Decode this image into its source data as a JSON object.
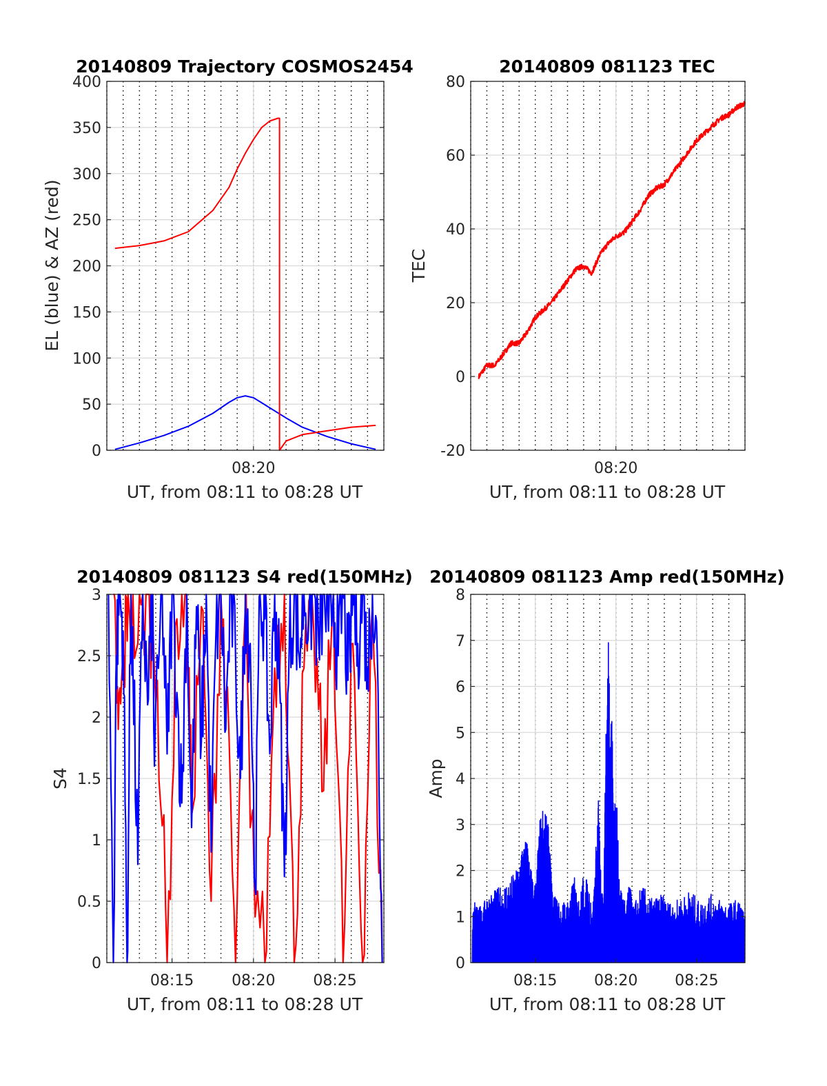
{
  "colors": {
    "el_series": "#0000ff",
    "az_series": "#ff0000",
    "tec_series": "#ff0000",
    "s4_red_series": "#ff0000",
    "s4_blue_series": "#0000ff",
    "amp_series": "#0000ff",
    "grid": "#d9d9d9",
    "axes": "#262626"
  },
  "chart_data": [
    {
      "id": "trajectory",
      "type": "line",
      "title": "20140809 Trajectory COSMOS2454",
      "xlabel": "UT, from 08:11 to 08:28 UT",
      "ylabel": "EL (blue) & AZ (red)",
      "xlim": [
        8.1833,
        8.4667
      ],
      "ylim": [
        0,
        400
      ],
      "xticks": [
        {
          "x": 8.3333,
          "label": "08:20"
        }
      ],
      "yticks": [
        0,
        50,
        100,
        150,
        200,
        250,
        300,
        350,
        400
      ],
      "grid": true,
      "minor_vertical_dotted_grid": true,
      "series": [
        {
          "color": "blue",
          "x": [
            8.1917,
            8.2167,
            8.2417,
            8.2667,
            8.2917,
            8.3083,
            8.3167,
            8.325,
            8.3333,
            8.35,
            8.3667,
            8.3833,
            8.4083,
            8.4333,
            8.4583
          ],
          "y": [
            1,
            8,
            16,
            26,
            40,
            52,
            57,
            59,
            57,
            46,
            35,
            25,
            15,
            7,
            1
          ]
        },
        {
          "color": "red",
          "x": [
            8.1917,
            8.2167,
            8.2417,
            8.2667,
            8.2917,
            8.3083,
            8.3167,
            8.325,
            8.3333,
            8.3417,
            8.35,
            8.3583,
            8.36,
            8.36,
            8.3667,
            8.3833,
            8.4083,
            8.4333,
            8.4583
          ],
          "y": [
            219,
            222,
            227,
            237,
            260,
            285,
            305,
            322,
            337,
            350,
            357,
            360,
            360,
            0,
            10,
            17,
            21,
            25,
            27
          ]
        }
      ]
    },
    {
      "id": "tec",
      "type": "line",
      "title": "20140809 081123 TEC",
      "xlabel": "UT, from 08:11 to 08:28 UT",
      "ylabel": "TEC",
      "xlim": [
        8.1833,
        8.4667
      ],
      "ylim": [
        -20,
        80
      ],
      "xticks": [
        {
          "x": 8.3333,
          "label": "08:20"
        }
      ],
      "yticks": [
        -20,
        0,
        20,
        40,
        60,
        80
      ],
      "grid": true,
      "minor_vertical_dotted_grid": true,
      "series": [
        {
          "color": "red",
          "x": [
            8.1917,
            8.2,
            8.2083,
            8.2167,
            8.225,
            8.2333,
            8.2417,
            8.25,
            8.2583,
            8.2667,
            8.275,
            8.2833,
            8.2917,
            8.3,
            8.3083,
            8.3167,
            8.325,
            8.3333,
            8.3417,
            8.35,
            8.3583,
            8.3667,
            8.375,
            8.3833,
            8.3917,
            8.4,
            8.4083,
            8.4167,
            8.425,
            8.4333,
            8.4417,
            8.45,
            8.4583,
            8.4667
          ],
          "y": [
            0,
            3,
            3,
            6,
            9,
            9,
            12,
            16,
            18,
            20,
            23,
            26,
            29,
            30,
            28,
            33,
            36,
            38,
            39,
            42,
            45,
            49,
            51,
            52,
            55,
            58,
            61,
            64,
            66,
            68,
            70,
            71,
            73,
            74
          ]
        }
      ]
    },
    {
      "id": "s4",
      "type": "line",
      "title": "20140809 081123 S4 red(150MHz)",
      "xlabel": "UT, from 08:11 to 08:28 UT",
      "ylabel": "S4",
      "xlim": [
        8.1833,
        8.4667
      ],
      "ylim": [
        0,
        3
      ],
      "xticks": [
        {
          "x": 8.25,
          "label": "08:15"
        },
        {
          "x": 8.3333,
          "label": "08:20"
        },
        {
          "x": 8.4167,
          "label": "08:25"
        }
      ],
      "yticks": [
        0,
        0.5,
        1,
        1.5,
        2,
        2.5,
        3
      ],
      "ytick_labels": [
        "0",
        "0.5",
        "1",
        "1.5",
        "2",
        "2.5",
        "3"
      ],
      "grid": true,
      "minor_vertical_dotted_grid": true,
      "series": [
        {
          "color": "red",
          "x": [
            8.19,
            8.195,
            8.2,
            8.205,
            8.215,
            8.225,
            8.235,
            8.245,
            8.255,
            8.265,
            8.27,
            8.28,
            8.29,
            8.3,
            8.305,
            8.315,
            8.325,
            8.33,
            8.345,
            8.355,
            8.365,
            8.375,
            8.385,
            8.395,
            8.405,
            8.415,
            8.425,
            8.435,
            8.445,
            8.455,
            8.465
          ],
          "y": [
            3,
            1.9,
            2.3,
            3,
            2.6,
            3,
            2.3,
            0,
            2.8,
            3,
            1.2,
            2.9,
            0.5,
            3,
            2.2,
            0,
            2.9,
            1.1,
            0,
            2.4,
            3,
            0,
            2.4,
            2.7,
            1.4,
            3,
            0,
            2.6,
            0,
            2.9,
            0
          ]
        },
        {
          "color": "blue",
          "x": [
            8.185,
            8.19,
            8.193,
            8.196,
            8.2,
            8.204,
            8.208,
            8.21,
            8.215,
            8.22,
            8.225,
            8.23,
            8.232,
            8.24,
            8.245,
            8.25,
            8.255,
            8.26,
            8.265,
            8.27,
            8.275,
            8.28,
            8.285,
            8.29,
            8.295,
            8.3,
            8.305,
            8.31,
            8.315,
            8.32,
            8.325,
            8.33,
            8.335,
            8.34,
            8.345,
            8.35,
            8.355,
            8.36,
            8.365,
            8.37,
            8.375,
            8.38,
            8.385,
            8.39,
            8.395,
            8.4,
            8.405,
            8.41,
            8.415,
            8.42,
            8.425,
            8.43,
            8.435,
            8.44,
            8.445,
            8.45,
            8.455,
            8.46,
            8.465
          ],
          "y": [
            3,
            0,
            2.5,
            3,
            2.7,
            0,
            3,
            2.4,
            0.8,
            3,
            2.1,
            3,
            1.6,
            3,
            1.7,
            3,
            2.2,
            1.3,
            3,
            1.1,
            2.9,
            1.8,
            3,
            0.9,
            2.7,
            3,
            1.9,
            3,
            2.5,
            1.5,
            3,
            2.6,
            0.6,
            3,
            2.8,
            1.7,
            3,
            2.3,
            0.7,
            2.6,
            3,
            2.5,
            3,
            2.8,
            3,
            2.6,
            3,
            2.7,
            3,
            2.5,
            3,
            2.3,
            3,
            2.6,
            3,
            2.4,
            3,
            2.5,
            0
          ]
        }
      ]
    },
    {
      "id": "amp",
      "type": "line",
      "title": "20140809 081123 Amp red(150MHz)",
      "xlabel": "UT, from 08:11 to 08:28 UT",
      "ylabel": "Amp",
      "xlim": [
        8.1833,
        8.4667
      ],
      "ylim": [
        0,
        8
      ],
      "xticks": [
        {
          "x": 8.25,
          "label": "08:15"
        },
        {
          "x": 8.3333,
          "label": "08:20"
        },
        {
          "x": 8.4167,
          "label": "08:25"
        }
      ],
      "yticks": [
        0,
        1,
        2,
        3,
        4,
        5,
        6,
        7,
        8
      ],
      "grid": true,
      "minor_vertical_dotted_grid": true,
      "series": [
        {
          "color": "blue",
          "x": [
            8.185,
            8.19,
            8.195,
            8.2,
            8.21,
            8.22,
            8.23,
            8.235,
            8.24,
            8.245,
            8.25,
            8.255,
            8.26,
            8.263,
            8.265,
            8.268,
            8.27,
            8.275,
            8.285,
            8.29,
            8.295,
            8.3,
            8.31,
            8.315,
            8.318,
            8.32,
            8.325,
            8.33,
            8.34,
            8.344,
            8.346,
            8.348,
            8.35,
            8.36,
            8.37,
            8.38,
            8.39,
            8.4,
            8.41,
            8.42,
            8.43,
            8.44,
            8.45,
            8.46,
            8.4667
          ],
          "y": [
            1.4,
            1.3,
            1.2,
            1.5,
            1.6,
            1.8,
            2.0,
            2.4,
            2.8,
            2.1,
            1.6,
            3.3,
            3.4,
            3.1,
            2.6,
            1.3,
            1.5,
            1.3,
            1.4,
            1.9,
            1.3,
            2.0,
            1.4,
            3.7,
            1.6,
            1.4,
            7.7,
            4.9,
            1.4,
            1.3,
            1.6,
            1.8,
            1.2,
            1.7,
            1.4,
            1.5,
            1.3,
            1.4,
            1.6,
            1.3,
            1.5,
            1.4,
            1.3,
            1.4,
            1.0
          ]
        }
      ]
    }
  ]
}
